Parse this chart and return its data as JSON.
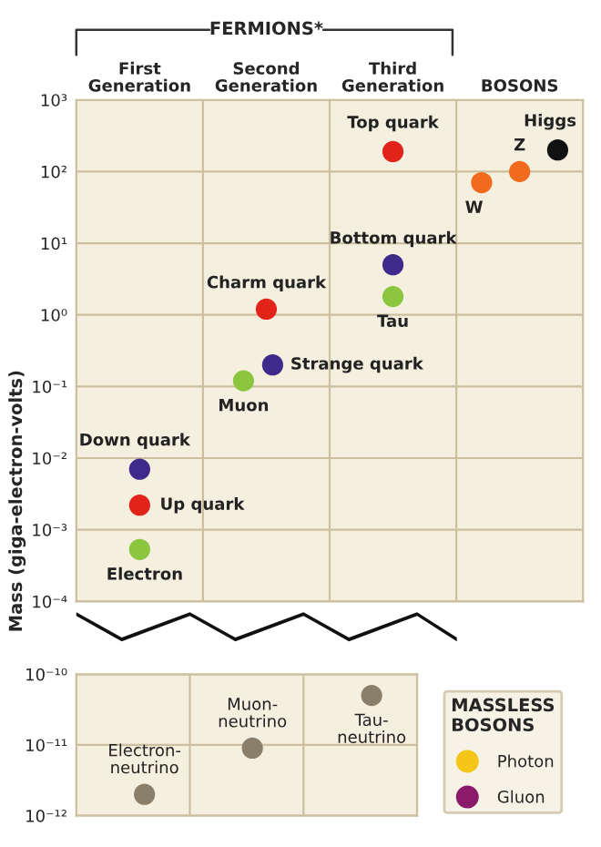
{
  "chart_data": [
    {
      "type": "scatter",
      "ylabel": "Mass (giga-electron-volts)",
      "log": true,
      "grid": true,
      "legend": false,
      "marker": "circle",
      "annotations": [
        "FERMIONS*"
      ],
      "categories": [
        "First\nGeneration",
        "Second\nGeneration",
        "Third\nGeneration",
        "BOSONS"
      ],
      "ylim": [
        0.0001,
        1000
      ],
      "yticks": [
        {
          "value": 0.0001,
          "label": "10⁻⁴"
        },
        {
          "value": 0.001,
          "label": "10⁻³"
        },
        {
          "value": 0.01,
          "label": "10⁻²"
        },
        {
          "value": 0.1,
          "label": "10⁻¹"
        },
        {
          "value": 1,
          "label": "10⁰"
        },
        {
          "value": 10,
          "label": "10¹"
        },
        {
          "value": 100,
          "label": "10²"
        },
        {
          "value": 1000,
          "label": "10³"
        }
      ],
      "series": [
        {
          "name": "Top quark",
          "color": "#e2231a",
          "values": [
            null,
            null,
            190,
            null
          ]
        },
        {
          "name": "W",
          "color": "#f26a1b",
          "values": [
            null,
            null,
            null,
            70
          ]
        },
        {
          "name": "Z",
          "color": "#f26a1b",
          "values": [
            null,
            null,
            null,
            100
          ]
        },
        {
          "name": "Higgs",
          "color": "#111111",
          "values": [
            null,
            null,
            null,
            200
          ]
        },
        {
          "name": "Bottom quark",
          "color": "#3d2a8a",
          "values": [
            null,
            null,
            5,
            null
          ]
        },
        {
          "name": "Tau",
          "color": "#8cc63e",
          "values": [
            null,
            null,
            1.8,
            null
          ]
        },
        {
          "name": "Charm quark",
          "color": "#e2231a",
          "values": [
            null,
            1.2,
            null,
            null
          ]
        },
        {
          "name": "Strange quark",
          "color": "#3d2a8a",
          "values": [
            null,
            0.2,
            null,
            null
          ]
        },
        {
          "name": "Muon",
          "color": "#8cc63e",
          "values": [
            null,
            0.12,
            null,
            null
          ]
        },
        {
          "name": "Down quark",
          "color": "#3d2a8a",
          "values": [
            0.007,
            null,
            null,
            null
          ]
        },
        {
          "name": "Up quark",
          "color": "#e2231a",
          "values": [
            0.0022,
            null,
            null,
            null
          ]
        },
        {
          "name": "Electron",
          "color": "#8cc63e",
          "values": [
            0.00053,
            null,
            null,
            null
          ]
        }
      ]
    },
    {
      "type": "scatter",
      "log": true,
      "grid": true,
      "legend": "right",
      "legend_title": "MASSLESS\nBOSONS",
      "marker": "circle",
      "categories": [
        null,
        null,
        null
      ],
      "ylim": [
        1e-12,
        1e-10
      ],
      "yticks": [
        {
          "value": 1e-12,
          "label": "10⁻¹²"
        },
        {
          "value": 1e-11,
          "label": "10⁻¹¹"
        },
        {
          "value": 1e-10,
          "label": "10⁻¹⁰"
        }
      ],
      "series": [
        {
          "name": "Electron-\nneutrino",
          "color": "#8a7f6a",
          "values": [
            2e-12,
            null,
            null
          ]
        },
        {
          "name": "Muon-\nneutrino",
          "color": "#8a7f6a",
          "values": [
            null,
            9e-12,
            null
          ]
        },
        {
          "name": "Tau-\nneutrino",
          "color": "#8a7f6a",
          "values": [
            null,
            null,
            5e-11
          ]
        },
        {
          "name": "Photon",
          "color": "#f5c518",
          "values": [
            null,
            null,
            null
          ]
        },
        {
          "name": "Gluon",
          "color": "#8b1a6b",
          "values": [
            null,
            null,
            null
          ]
        }
      ]
    }
  ]
}
